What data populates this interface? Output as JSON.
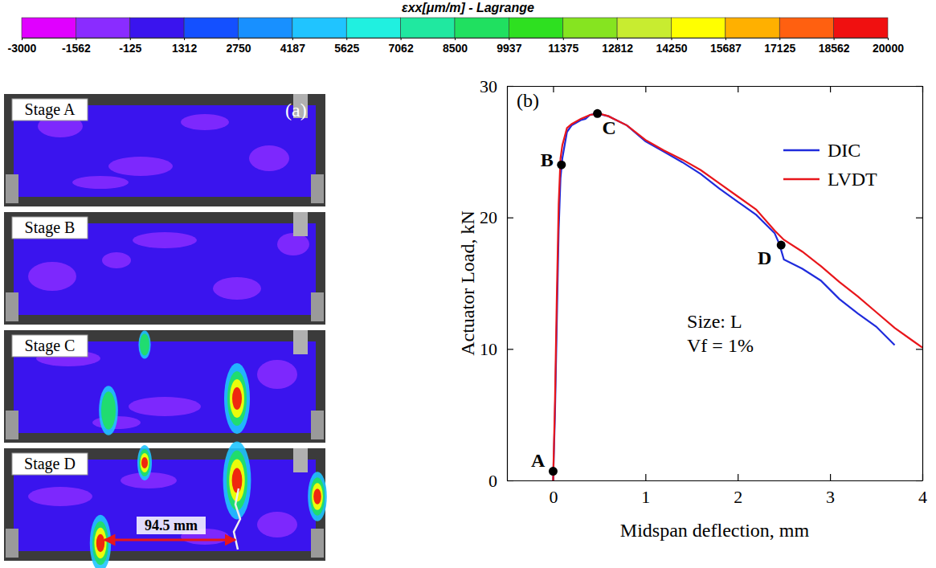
{
  "chart_data": [
    {
      "type": "colorbar",
      "title": "εxx[μm/m] - Lagrange",
      "xlim": [
        -3000,
        20000
      ],
      "xticks": [
        -3000,
        -1562,
        -125,
        1312,
        2750,
        4187,
        5625,
        7062,
        8500,
        9937,
        11375,
        12812,
        14250,
        15687,
        17125,
        18562,
        20000
      ],
      "colors": [
        "#e000ff",
        "#8a2cff",
        "#3a14ee",
        "#1450ff",
        "#1890ff",
        "#20c4ff",
        "#20f0e0",
        "#20e8a0",
        "#20e060",
        "#2ee020",
        "#86e420",
        "#c8ec30",
        "#ffff00",
        "#ffb000",
        "#ff6010",
        "#f01010"
      ]
    },
    {
      "type": "image",
      "panel": "(a)",
      "annotations": [
        "Stage A",
        "Stage B",
        "Stage C",
        "Stage D"
      ],
      "dimension": "94.5 mm"
    },
    {
      "type": "line",
      "panel": "(b)",
      "x_label": "Midspan deflection, mm",
      "y_label": "Actuator Load, kN",
      "xlim": [
        -0.5,
        4
      ],
      "xticks": [
        0,
        1,
        2,
        3,
        4
      ],
      "ylim": [
        0,
        30
      ],
      "yticks": [
        0,
        10,
        20,
        30
      ],
      "legend": "upper right",
      "annotations": [
        "Size: L",
        "Vf = 1%"
      ],
      "series": [
        {
          "name": "DIC",
          "color": "#1f2bdc",
          "x": [
            0,
            0.02,
            0.04,
            0.06,
            0.08,
            0.1,
            0.15,
            0.2,
            0.25,
            0.3,
            0.35,
            0.4,
            0.48,
            0.6,
            0.8,
            1.0,
            1.2,
            1.4,
            1.6,
            1.8,
            2.0,
            2.2,
            2.4,
            2.45,
            2.5,
            2.7,
            2.9,
            3.1,
            3.3,
            3.5,
            3.7
          ],
          "values": [
            0,
            5,
            12,
            19,
            23,
            24.5,
            26.5,
            27,
            27.2,
            27.4,
            27.5,
            27.8,
            27.9,
            27.7,
            27,
            25.8,
            25,
            24.2,
            23.3,
            22.2,
            21.2,
            20.2,
            18.8,
            18,
            16.8,
            16.1,
            15.2,
            13.8,
            12.7,
            11.7,
            10.3
          ]
        },
        {
          "name": "LVDT",
          "color": "#e8161b",
          "x": [
            0,
            0.02,
            0.04,
            0.06,
            0.08,
            0.1,
            0.15,
            0.2,
            0.3,
            0.4,
            0.5,
            0.6,
            0.8,
            1.0,
            1.2,
            1.4,
            1.6,
            1.8,
            2.0,
            2.2,
            2.4,
            2.5,
            2.7,
            2.9,
            3.1,
            3.3,
            3.5,
            3.7,
            3.9,
            4.0
          ],
          "values": [
            0,
            6,
            14,
            21,
            24.5,
            25.5,
            26.8,
            27.1,
            27.5,
            27.8,
            27.9,
            27.7,
            27,
            25.9,
            25.1,
            24.4,
            23.6,
            22.6,
            21.6,
            20.6,
            19,
            18.3,
            17.4,
            16.3,
            15.1,
            14,
            12.8,
            11.6,
            10.6,
            10.1
          ]
        }
      ],
      "points": {
        "labels": [
          "A",
          "B",
          "C",
          "D"
        ],
        "x": [
          0,
          0.09,
          0.48,
          2.47
        ],
        "y": [
          0.7,
          24,
          27.9,
          17.9
        ],
        "color": "#000000"
      }
    }
  ]
}
